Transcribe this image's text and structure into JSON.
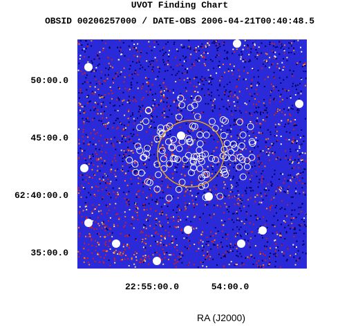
{
  "header": {
    "title": "UVOT Finding Chart",
    "subtitle": "OBSID 00206257000 / DATE-OBS 2006-04-21T00:40:48.5"
  },
  "axes": {
    "y_labels": [
      "50:00.0",
      "45:00.0",
      "62:40:00.0",
      "35:00.0"
    ],
    "x_labels": [
      "22:55:00.0",
      "54:00.0"
    ],
    "x_title": "RA (J2000)"
  }
}
